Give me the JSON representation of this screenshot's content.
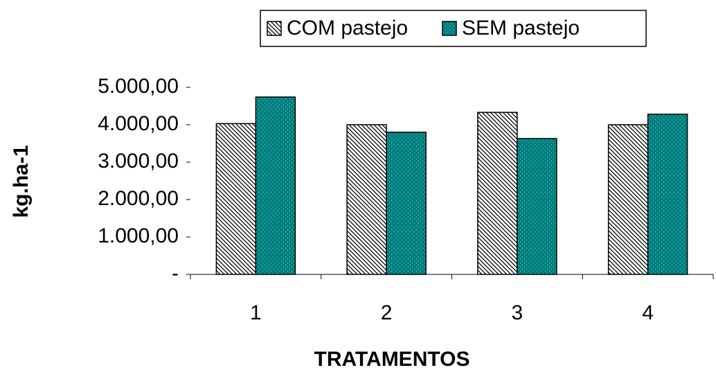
{
  "chart_data": {
    "type": "bar",
    "categories": [
      "1",
      "2",
      "3",
      "4"
    ],
    "series": [
      {
        "name": "COM pastejo",
        "color": "#000000",
        "pattern": "hatch",
        "values": [
          4030,
          4000,
          4330,
          4000
        ]
      },
      {
        "name": "SEM pastejo",
        "color": "#008080",
        "pattern": "dots",
        "values": [
          4740,
          3800,
          3630,
          4280
        ]
      }
    ],
    "ylim": [
      0,
      5000
    ],
    "yticks": [
      {
        "value": 0,
        "label": "-"
      },
      {
        "value": 1000,
        "label": "1.000,00"
      },
      {
        "value": 2000,
        "label": "2.000,00"
      },
      {
        "value": 3000,
        "label": "3.000,00"
      },
      {
        "value": 4000,
        "label": "4.000,00"
      },
      {
        "value": 5000,
        "label": "5.000,00"
      }
    ],
    "y_label": "kg.ha-1",
    "x_label": "TRATAMENTOS",
    "legend": "top"
  }
}
